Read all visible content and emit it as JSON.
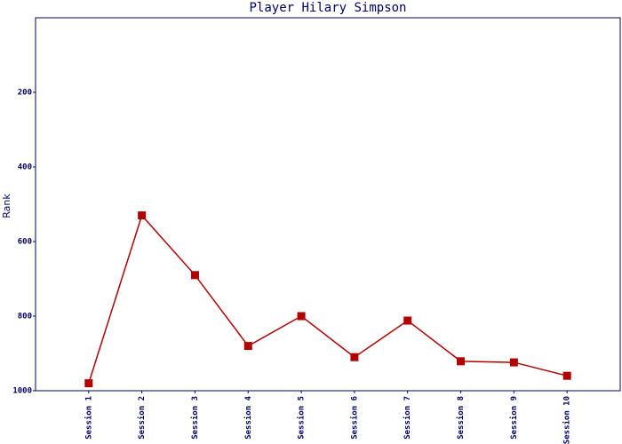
{
  "chart_data": {
    "type": "line",
    "title": "Player Hilary Simpson",
    "y_label": "Rank",
    "categories": [
      "Session 1",
      "Session 2",
      "Session 3",
      "Session 4",
      "Session 5",
      "Session 6",
      "Session 7",
      "Session 8",
      "Session 9",
      "Session 10"
    ],
    "series": [
      {
        "name": "Rank",
        "color": "#b00000",
        "values": [
          980,
          530,
          690,
          880,
          800,
          910,
          812,
          921,
          924,
          960
        ]
      }
    ],
    "ylim": [
      1000,
      0
    ],
    "yticks": [
      200,
      400,
      600,
      800,
      1000
    ],
    "grid": false
  }
}
